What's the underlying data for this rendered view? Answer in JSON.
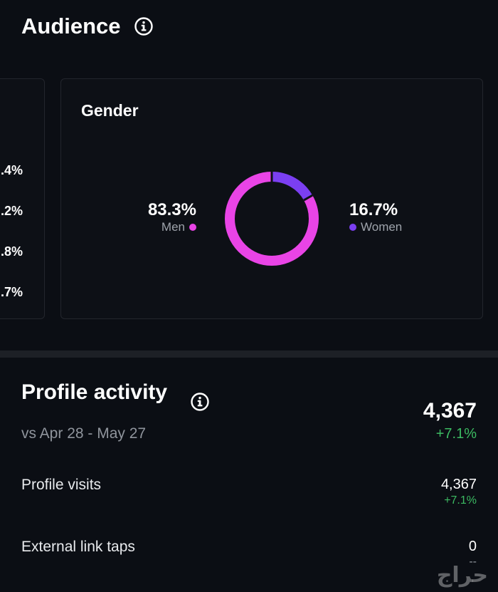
{
  "audience": {
    "title": "Audience",
    "left_card_percentages": [
      ".4%",
      ".2%",
      ".8%",
      ".7%"
    ]
  },
  "gender": {
    "title": "Gender",
    "men": {
      "value": "83.3%",
      "label": "Men",
      "color": "#e944e6",
      "fraction": 0.833
    },
    "women": {
      "value": "16.7%",
      "label": "Women",
      "color": "#7b3ff2",
      "fraction": 0.167
    }
  },
  "profile_activity": {
    "title": "Profile activity",
    "comparison": "vs Apr 28 - May 27",
    "total": "4,367",
    "total_change": "+7.1%",
    "rows": [
      {
        "label": "Profile visits",
        "value": "4,367",
        "change": "+7.1%"
      },
      {
        "label": "External link taps",
        "value": "0",
        "change": "--"
      }
    ]
  },
  "watermark": "حراج"
}
